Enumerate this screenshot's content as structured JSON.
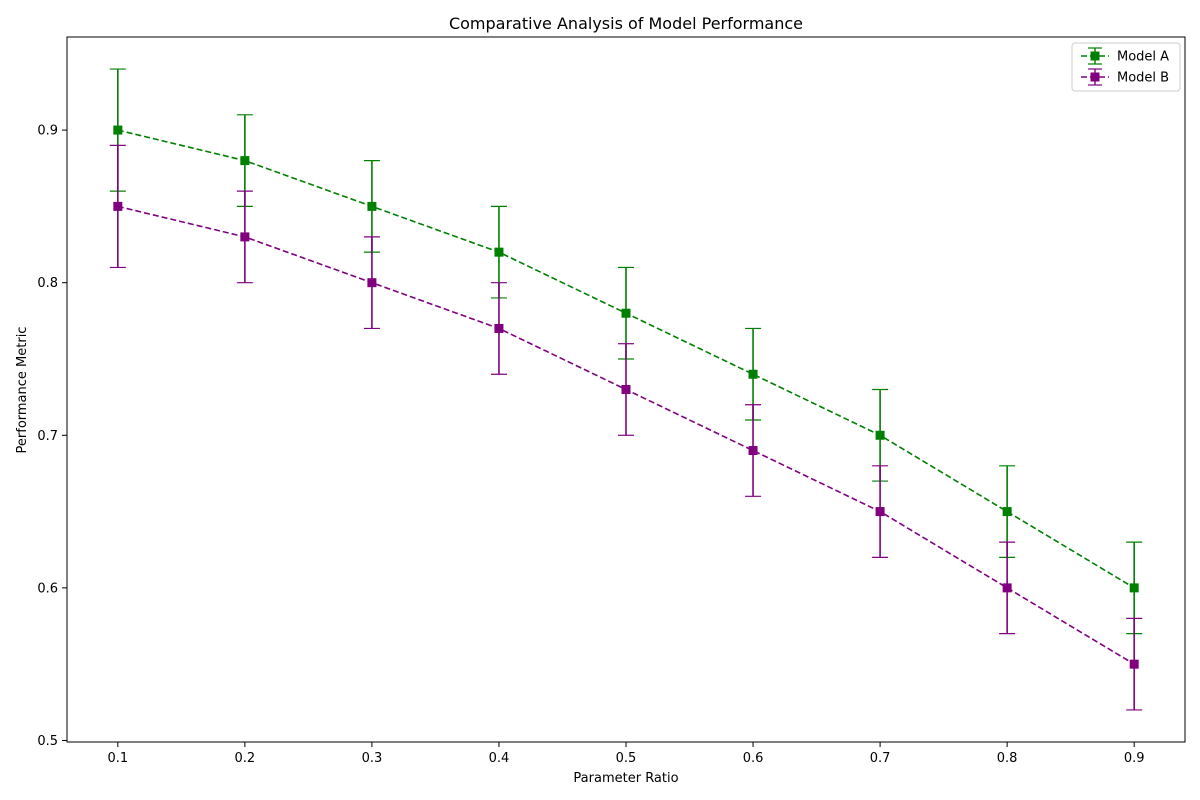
{
  "chart_data": {
    "type": "line",
    "title": "Comparative Analysis of Model Performance",
    "xlabel": "Parameter Ratio",
    "ylabel": "Performance Metric",
    "x": [
      0.1,
      0.2,
      0.3,
      0.4,
      0.5,
      0.6,
      0.7,
      0.8,
      0.9
    ],
    "xlim": [
      0.06,
      0.94
    ],
    "ylim": [
      0.499,
      0.961
    ],
    "x_ticks": [
      "0.1",
      "0.2",
      "0.3",
      "0.4",
      "0.5",
      "0.6",
      "0.7",
      "0.8",
      "0.9"
    ],
    "y_ticks": [
      "0.5",
      "0.6",
      "0.7",
      "0.8",
      "0.9"
    ],
    "grid": false,
    "legend_position": "top-right",
    "series": [
      {
        "name": "Model A",
        "color": "#008000",
        "linestyle": "dashed",
        "marker": "square",
        "values": [
          0.9,
          0.88,
          0.85,
          0.82,
          0.78,
          0.74,
          0.7,
          0.65,
          0.6
        ],
        "error": [
          0.04,
          0.03,
          0.03,
          0.03,
          0.03,
          0.03,
          0.03,
          0.03,
          0.03
        ]
      },
      {
        "name": "Model B",
        "color": "#800080",
        "linestyle": "dashed",
        "marker": "square",
        "values": [
          0.85,
          0.83,
          0.8,
          0.77,
          0.73,
          0.69,
          0.65,
          0.6,
          0.55
        ],
        "error": [
          0.04,
          0.03,
          0.03,
          0.03,
          0.03,
          0.03,
          0.03,
          0.03,
          0.03
        ]
      }
    ]
  }
}
